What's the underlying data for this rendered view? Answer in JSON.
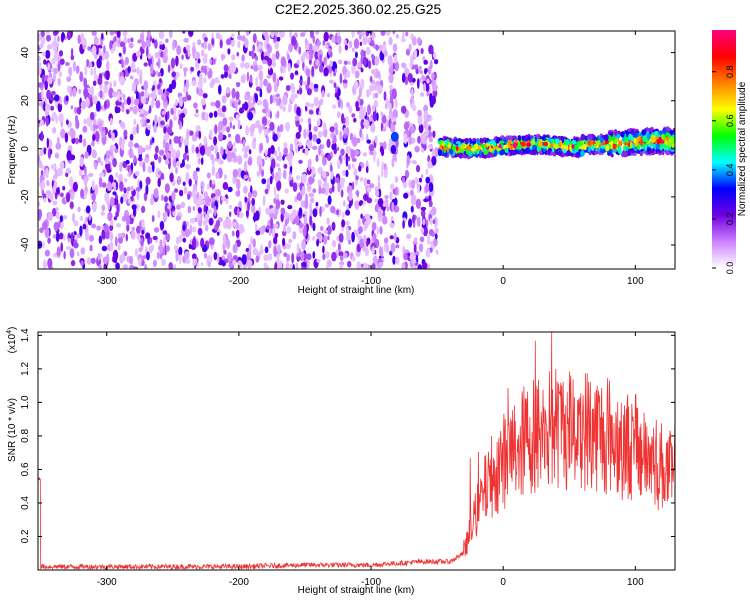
{
  "title": "C2E2.2025.360.02.25.G25",
  "chart_data": [
    {
      "type": "heatmap",
      "xlabel": "Height of straight line (km)",
      "ylabel": "Frequency (Hz)",
      "xlim": [
        -352,
        130
      ],
      "ylim": [
        -50,
        49
      ],
      "xticks": [
        -300,
        -200,
        -100,
        0,
        100
      ],
      "yticks": [
        -40,
        -20,
        0,
        20,
        40
      ],
      "colorbar": {
        "label": "Normalized spectral amplitude",
        "range": [
          0,
          0.97
        ],
        "ticks": [
          0.0,
          0.2,
          0.4,
          0.6,
          0.8
        ],
        "colors": [
          "#ffffff",
          "#cc80ff",
          "#7000e0",
          "#0000ff",
          "#00ffff",
          "#00ff00",
          "#ffff00",
          "#ff8000",
          "#ff0000",
          "#ff0080"
        ]
      },
      "regions": [
        {
          "x": [
            -352,
            -50
          ],
          "frequency": "full band -50..49",
          "amplitude": "0.05-0.25 (noise)"
        },
        {
          "x": [
            -85,
            -80
          ],
          "frequency": 5,
          "amplitude": 0.35
        },
        {
          "x": [
            -48,
            130
          ],
          "frequency": "about 0..4",
          "amplitude": "0.3-0.95"
        }
      ]
    },
    {
      "type": "line",
      "xlabel": "Height of straight line (km)",
      "ylabel": "SNR (10 * v/v)",
      "multiplier": "(x10",
      "multiplier_exp": "4",
      "multiplier_close": ")",
      "xlim": [
        -352,
        130
      ],
      "ylim": [
        0,
        1.42
      ],
      "xticks": [
        -300,
        -200,
        -100,
        0,
        100
      ],
      "yticks": [
        0.2,
        0.4,
        0.6,
        0.8,
        1.0,
        1.2,
        1.4
      ],
      "color": "#ee3333",
      "x": [
        -350,
        -300,
        -250,
        -200,
        -150,
        -100,
        -60,
        -40,
        -30,
        -20,
        -10,
        0,
        20,
        40,
        60,
        80,
        100,
        120,
        130
      ],
      "values": [
        0.02,
        0.02,
        0.02,
        0.02,
        0.03,
        0.03,
        0.05,
        0.05,
        0.1,
        0.35,
        0.55,
        0.65,
        0.8,
        0.85,
        0.85,
        0.8,
        0.72,
        0.62,
        0.55
      ]
    }
  ]
}
